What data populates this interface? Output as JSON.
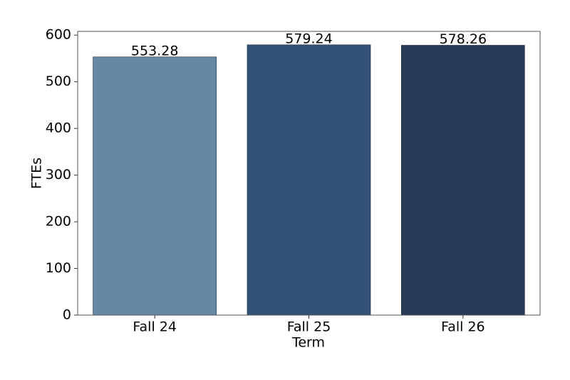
{
  "chart_data": {
    "type": "bar",
    "x_label": "Term",
    "y_label": "FTEs",
    "categories": [
      "Fall 24",
      "Fall 25",
      "Fall 26"
    ],
    "values": [
      553.28,
      579.24,
      578.26
    ],
    "colors": [
      "#6788a5",
      "#345275",
      "#283b55"
    ],
    "ylim": [
      0,
      608
    ],
    "yticks": [
      0,
      100,
      200,
      300,
      400,
      500,
      600
    ],
    "grid": false,
    "value_labels_shown": true
  }
}
